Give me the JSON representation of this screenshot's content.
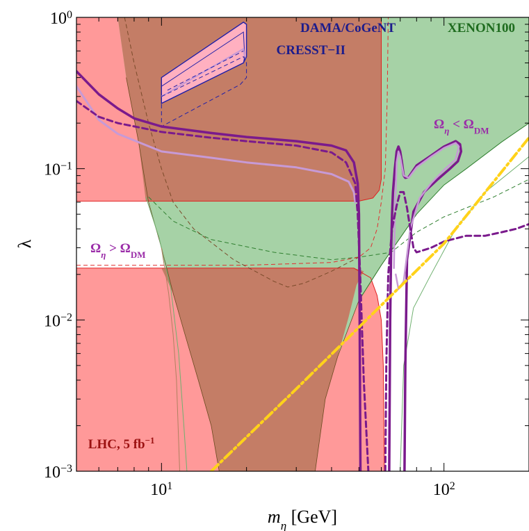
{
  "chart_data": {
    "type": "area",
    "title": "",
    "xlabel": {
      "var": "m",
      "sub": "η",
      "unit": " [GeV]"
    },
    "ylabel": "λ",
    "x_scale": "log",
    "y_scale": "log",
    "xlim": [
      5,
      200
    ],
    "ylim": [
      0.001,
      1
    ],
    "grid": false,
    "x_ticks": [
      {
        "value": 10,
        "base": "10",
        "exp": "1"
      },
      {
        "value": 100,
        "base": "10",
        "exp": "2"
      }
    ],
    "y_ticks": [
      {
        "value": 0.001,
        "base": "10",
        "exp": "−3"
      },
      {
        "value": 0.01,
        "base": "10",
        "exp": "−2"
      },
      {
        "value": 0.1,
        "base": "10",
        "exp": "−1"
      },
      {
        "value": 1,
        "base": "10",
        "exp": "0"
      }
    ],
    "colors": {
      "lhc": "#ff9999",
      "xenon": "#a6d2a6",
      "overlap": "#c47d66",
      "purple": "#7a1a8c",
      "lavender": "#c79ad6",
      "yellow": "#ffd21a",
      "dama": "#2020a8"
    },
    "annotations": [
      {
        "name": "dama-label",
        "text": "DAMA/CoGeNT",
        "x": 31,
        "y": 0.8,
        "color": "#1c1c8c"
      },
      {
        "name": "cresst-label",
        "text": "CRESST−II",
        "x": 25.5,
        "y": 0.57,
        "color": "#1c1c8c"
      },
      {
        "name": "xenon-label",
        "text": "XENON100",
        "x": 103,
        "y": 0.8,
        "color": "#1e6b1e"
      },
      {
        "name": "omega-lt-label",
        "main": "Ω",
        "sub1": "η",
        "rel": " < Ω",
        "sub2": "DM",
        "x": 92,
        "y": 0.185,
        "color": "#9a2ca8"
      },
      {
        "name": "omega-gt-label",
        "main": "Ω",
        "sub1": "η",
        "rel": " > Ω",
        "sub2": "DM",
        "x": 5.6,
        "y": 0.028,
        "color": "#9a2ca8"
      },
      {
        "name": "lhc-label",
        "main": "LHC, 5 fb",
        "sup": "−1",
        "x": 5.5,
        "y": 0.00142,
        "color": "#9b1111"
      }
    ],
    "regions": [
      {
        "name": "lhc-region-upper",
        "color": "lhc",
        "points": [
          [
            5,
            1
          ],
          [
            60,
            1
          ],
          [
            60,
            0.085
          ],
          [
            59,
            0.072
          ],
          [
            56,
            0.064
          ],
          [
            50,
            0.061
          ],
          [
            5,
            0.061
          ]
        ]
      },
      {
        "name": "lhc-region-lower",
        "color": "lhc",
        "points": [
          [
            5,
            0.022
          ],
          [
            48,
            0.022
          ],
          [
            55,
            0.019
          ],
          [
            58,
            0.0145
          ],
          [
            60,
            0.01
          ],
          [
            61,
            0.005
          ],
          [
            61.5,
            0.001
          ],
          [
            5,
            0.001
          ]
        ]
      },
      {
        "name": "xenon-region",
        "color": "xenon",
        "points": [
          [
            7,
            1
          ],
          [
            200,
            1
          ],
          [
            200,
            0.2
          ],
          [
            160,
            0.15
          ],
          [
            120,
            0.1
          ],
          [
            100,
            0.078
          ],
          [
            80,
            0.05
          ],
          [
            60,
            0.023
          ],
          [
            50,
            0.0135
          ],
          [
            42,
            0.0057
          ],
          [
            38,
            0.003
          ],
          [
            35,
            0.001
          ],
          [
            16,
            0.001
          ],
          [
            15,
            0.002
          ],
          [
            13.5,
            0.004
          ],
          [
            12,
            0.0085
          ],
          [
            11,
            0.015
          ],
          [
            10,
            0.03
          ],
          [
            9,
            0.06
          ],
          [
            8.3,
            0.15
          ],
          [
            7.5,
            0.4
          ]
        ]
      },
      {
        "name": "overlap-region-upper",
        "color": "overlap",
        "points": [
          [
            7,
            1
          ],
          [
            60,
            1
          ],
          [
            60,
            0.085
          ],
          [
            59,
            0.072
          ],
          [
            56,
            0.064
          ],
          [
            50,
            0.061
          ],
          [
            8.8,
            0.061
          ],
          [
            8.3,
            0.15
          ],
          [
            7.5,
            0.4
          ]
        ]
      },
      {
        "name": "overlap-region-lower",
        "color": "overlap",
        "points": [
          [
            10,
            0.022
          ],
          [
            48,
            0.022
          ],
          [
            52,
            0.021
          ],
          [
            49,
            0.017
          ],
          [
            46,
            0.0105
          ],
          [
            42,
            0.0057
          ],
          [
            38,
            0.003
          ],
          [
            35,
            0.001
          ],
          [
            16,
            0.001
          ],
          [
            15,
            0.002
          ],
          [
            13.5,
            0.004
          ],
          [
            12,
            0.0085
          ],
          [
            11,
            0.015
          ]
        ]
      }
    ],
    "series": [
      {
        "name": "",
        "color": "purple",
        "width": 3.5,
        "dash": "",
        "points": [
          [
            5,
            0.44
          ],
          [
            6,
            0.31
          ],
          [
            7,
            0.25
          ],
          [
            8,
            0.215
          ],
          [
            10,
            0.19
          ],
          [
            15,
            0.172
          ],
          [
            20,
            0.162
          ],
          [
            30,
            0.152
          ],
          [
            40,
            0.142
          ],
          [
            45,
            0.132
          ],
          [
            48,
            0.11
          ],
          [
            49.5,
            0.08
          ],
          [
            50,
            0.05
          ],
          [
            50.3,
            0.01
          ],
          [
            50.6,
            0.001
          ]
        ]
      },
      {
        "name": "",
        "color": "lavender",
        "width": 3,
        "dash": "",
        "points": [
          [
            5,
            0.35
          ],
          [
            6,
            0.21
          ],
          [
            7,
            0.17
          ],
          [
            10,
            0.13
          ],
          [
            15,
            0.118
          ],
          [
            20,
            0.11
          ],
          [
            30,
            0.102
          ],
          [
            40,
            0.092
          ],
          [
            46,
            0.082
          ],
          [
            48,
            0.07
          ],
          [
            48.5,
            0.06
          ]
        ]
      },
      {
        "name": "",
        "color": "purple",
        "width": 3,
        "dash": "8,5",
        "points": [
          [
            5,
            0.28
          ],
          [
            6,
            0.22
          ],
          [
            7,
            0.2
          ],
          [
            10,
            0.175
          ],
          [
            15,
            0.16
          ],
          [
            20,
            0.152
          ],
          [
            30,
            0.142
          ],
          [
            40,
            0.128
          ],
          [
            45,
            0.11
          ],
          [
            48.5,
            0.08
          ],
          [
            49.5,
            0.05
          ],
          [
            50.5,
            0.02
          ],
          [
            52,
            0.004
          ],
          [
            54,
            0.001
          ]
        ]
      },
      {
        "name": "",
        "color": "purple",
        "width": 3.5,
        "dash": "",
        "points": [
          [
            64,
            0.001
          ],
          [
            64.5,
            0.01
          ],
          [
            65,
            0.03
          ],
          [
            65.5,
            0.05
          ],
          [
            66,
            0.07
          ],
          [
            67,
            0.1
          ],
          [
            68,
            0.13
          ],
          [
            69,
            0.14
          ],
          [
            70,
            0.13
          ],
          [
            71,
            0.11
          ],
          [
            72,
            0.09
          ],
          [
            73,
            0.087
          ],
          [
            75,
            0.088
          ],
          [
            80,
            0.105
          ],
          [
            90,
            0.122
          ],
          [
            100,
            0.14
          ],
          [
            110,
            0.152
          ],
          [
            114,
            0.145
          ],
          [
            115,
            0.13
          ],
          [
            112,
            0.112
          ],
          [
            105,
            0.1
          ],
          [
            95,
            0.085
          ],
          [
            85,
            0.07
          ],
          [
            78,
            0.052
          ],
          [
            74,
            0.025
          ],
          [
            73,
            0.005
          ],
          [
            72.5,
            0.001
          ]
        ]
      },
      {
        "name": "",
        "color": "lavender",
        "width": 2.5,
        "dash": "",
        "points": [
          [
            66.5,
            0.022
          ],
          [
            67,
            0.05
          ],
          [
            68,
            0.11
          ],
          [
            69,
            0.13
          ],
          [
            70,
            0.12
          ],
          [
            72,
            0.09
          ],
          [
            75,
            0.087
          ],
          [
            80,
            0.102
          ],
          [
            90,
            0.12
          ],
          [
            100,
            0.137
          ],
          [
            110,
            0.148
          ],
          [
            113,
            0.14
          ],
          [
            110,
            0.115
          ],
          [
            100,
            0.098
          ],
          [
            90,
            0.08
          ],
          [
            82,
            0.064
          ],
          [
            76,
            0.04
          ],
          [
            72,
            0.018
          ],
          [
            69,
            0.016
          ],
          [
            67.5,
            0.02
          ]
        ]
      },
      {
        "name": "",
        "color": "purple",
        "width": 3,
        "dash": "8,5",
        "points": [
          [
            62,
            0.001
          ],
          [
            62.5,
            0.005
          ],
          [
            63.5,
            0.02
          ],
          [
            65.5,
            0.04
          ],
          [
            68,
            0.057
          ],
          [
            70,
            0.07
          ],
          [
            72,
            0.07
          ],
          [
            74,
            0.055
          ],
          [
            76,
            0.04
          ],
          [
            78,
            0.03
          ],
          [
            80,
            0.028
          ],
          [
            90,
            0.03
          ],
          [
            100,
            0.033
          ],
          [
            120,
            0.036
          ],
          [
            140,
            0.036
          ],
          [
            160,
            0.038
          ],
          [
            180,
            0.04
          ],
          [
            200,
            0.043
          ]
        ]
      },
      {
        "name": "",
        "color": "yellow",
        "width": 4,
        "dash": "14,5,3,5",
        "points": [
          [
            15,
            0.001
          ],
          [
            30,
            0.0035
          ],
          [
            60,
            0.0125
          ],
          [
            100,
            0.032
          ],
          [
            200,
            0.16
          ]
        ]
      }
    ],
    "boundary_lines": [
      {
        "name": "xenon-edge-line",
        "color": "#2f7f2f",
        "width": 1,
        "dash": "",
        "points": [
          [
            50,
            0.0135
          ],
          [
            60,
            0.023
          ],
          [
            80,
            0.05
          ],
          [
            100,
            0.078
          ],
          [
            120,
            0.1
          ],
          [
            160,
            0.15
          ],
          [
            200,
            0.2
          ]
        ]
      },
      {
        "name": "xenon-thin-line-left",
        "color": "#6fb06f",
        "width": 1,
        "dash": "",
        "points": [
          [
            8.8,
            0.065
          ],
          [
            9.8,
            0.035
          ],
          [
            10.8,
            0.016
          ],
          [
            11.5,
            0.006
          ],
          [
            12,
            0.002
          ],
          [
            12.3,
            0.001
          ]
        ]
      },
      {
        "name": "xenon-thin-line-right",
        "color": "#6fb06f",
        "width": 1,
        "dash": "",
        "points": [
          [
            70,
            0.001
          ],
          [
            72,
            0.005
          ],
          [
            78,
            0.012
          ],
          [
            90,
            0.02
          ],
          [
            110,
            0.04
          ],
          [
            140,
            0.07
          ],
          [
            200,
            0.12
          ]
        ]
      },
      {
        "name": "xenon-dashed-line",
        "color": "#2f7f2f",
        "width": 1,
        "dash": "6,4",
        "points": [
          [
            9,
            0.065
          ],
          [
            11,
            0.045
          ],
          [
            15,
            0.034
          ],
          [
            25,
            0.028
          ],
          [
            40,
            0.025
          ],
          [
            50,
            0.026
          ],
          [
            65,
            0.028
          ],
          [
            80,
            0.038
          ],
          [
            100,
            0.048
          ],
          [
            150,
            0.065
          ],
          [
            200,
            0.085
          ]
        ]
      },
      {
        "name": "lhc-dashed-line",
        "color": "#e03030",
        "width": 1,
        "dash": "6,4",
        "points": [
          [
            5,
            0.023
          ],
          [
            20,
            0.023
          ],
          [
            40,
            0.024
          ],
          [
            50,
            0.026
          ],
          [
            55,
            0.03
          ],
          [
            58,
            0.04
          ],
          [
            60,
            0.06
          ],
          [
            62,
            0.1
          ],
          [
            63,
            0.3
          ],
          [
            63.5,
            1
          ]
        ]
      },
      {
        "name": "overlap-dashed-line",
        "color": "#7a4a2a",
        "width": 1,
        "dash": "6,4",
        "points": [
          [
            7.4,
            1
          ],
          [
            8,
            0.5
          ],
          [
            9,
            0.2
          ],
          [
            10,
            0.1
          ],
          [
            11,
            0.06
          ],
          [
            13,
            0.04
          ],
          [
            18,
            0.025
          ],
          [
            25,
            0.018
          ],
          [
            28,
            0.0165
          ],
          [
            32,
            0.0175
          ],
          [
            40,
            0.021
          ],
          [
            50,
            0.026
          ]
        ]
      },
      {
        "name": "overlap-thin-line",
        "color": "#b08060",
        "width": 1,
        "dash": "",
        "points": [
          [
            10,
            0.03
          ],
          [
            10.6,
            0.015
          ],
          [
            11,
            0.008
          ],
          [
            11.3,
            0.004
          ],
          [
            11.6,
            0.001
          ]
        ]
      }
    ],
    "dama_box": {
      "solid_outer": [
        [
          10,
          0.4
        ],
        [
          19.5,
          0.93
        ],
        [
          20,
          0.9
        ],
        [
          20,
          0.55
        ],
        [
          19.5,
          0.5
        ],
        [
          10,
          0.27
        ]
      ],
      "solid_inner": [
        [
          10,
          0.35
        ],
        [
          19.5,
          0.8
        ],
        [
          19.7,
          0.55
        ],
        [
          19.5,
          0.5
        ],
        [
          10,
          0.27
        ]
      ],
      "lavender": [
        [
          10,
          0.3
        ],
        [
          19.5,
          0.62
        ],
        [
          19.7,
          0.55
        ]
      ],
      "dashed_line": [
        [
          10.5,
          0.33
        ],
        [
          19.5,
          0.6
        ]
      ],
      "dashed_outer": [
        [
          10,
          0.3
        ],
        [
          19.5,
          0.55
        ],
        [
          20,
          0.5
        ],
        [
          20,
          0.4
        ],
        [
          19,
          0.36
        ],
        [
          10,
          0.19
        ]
      ]
    }
  }
}
